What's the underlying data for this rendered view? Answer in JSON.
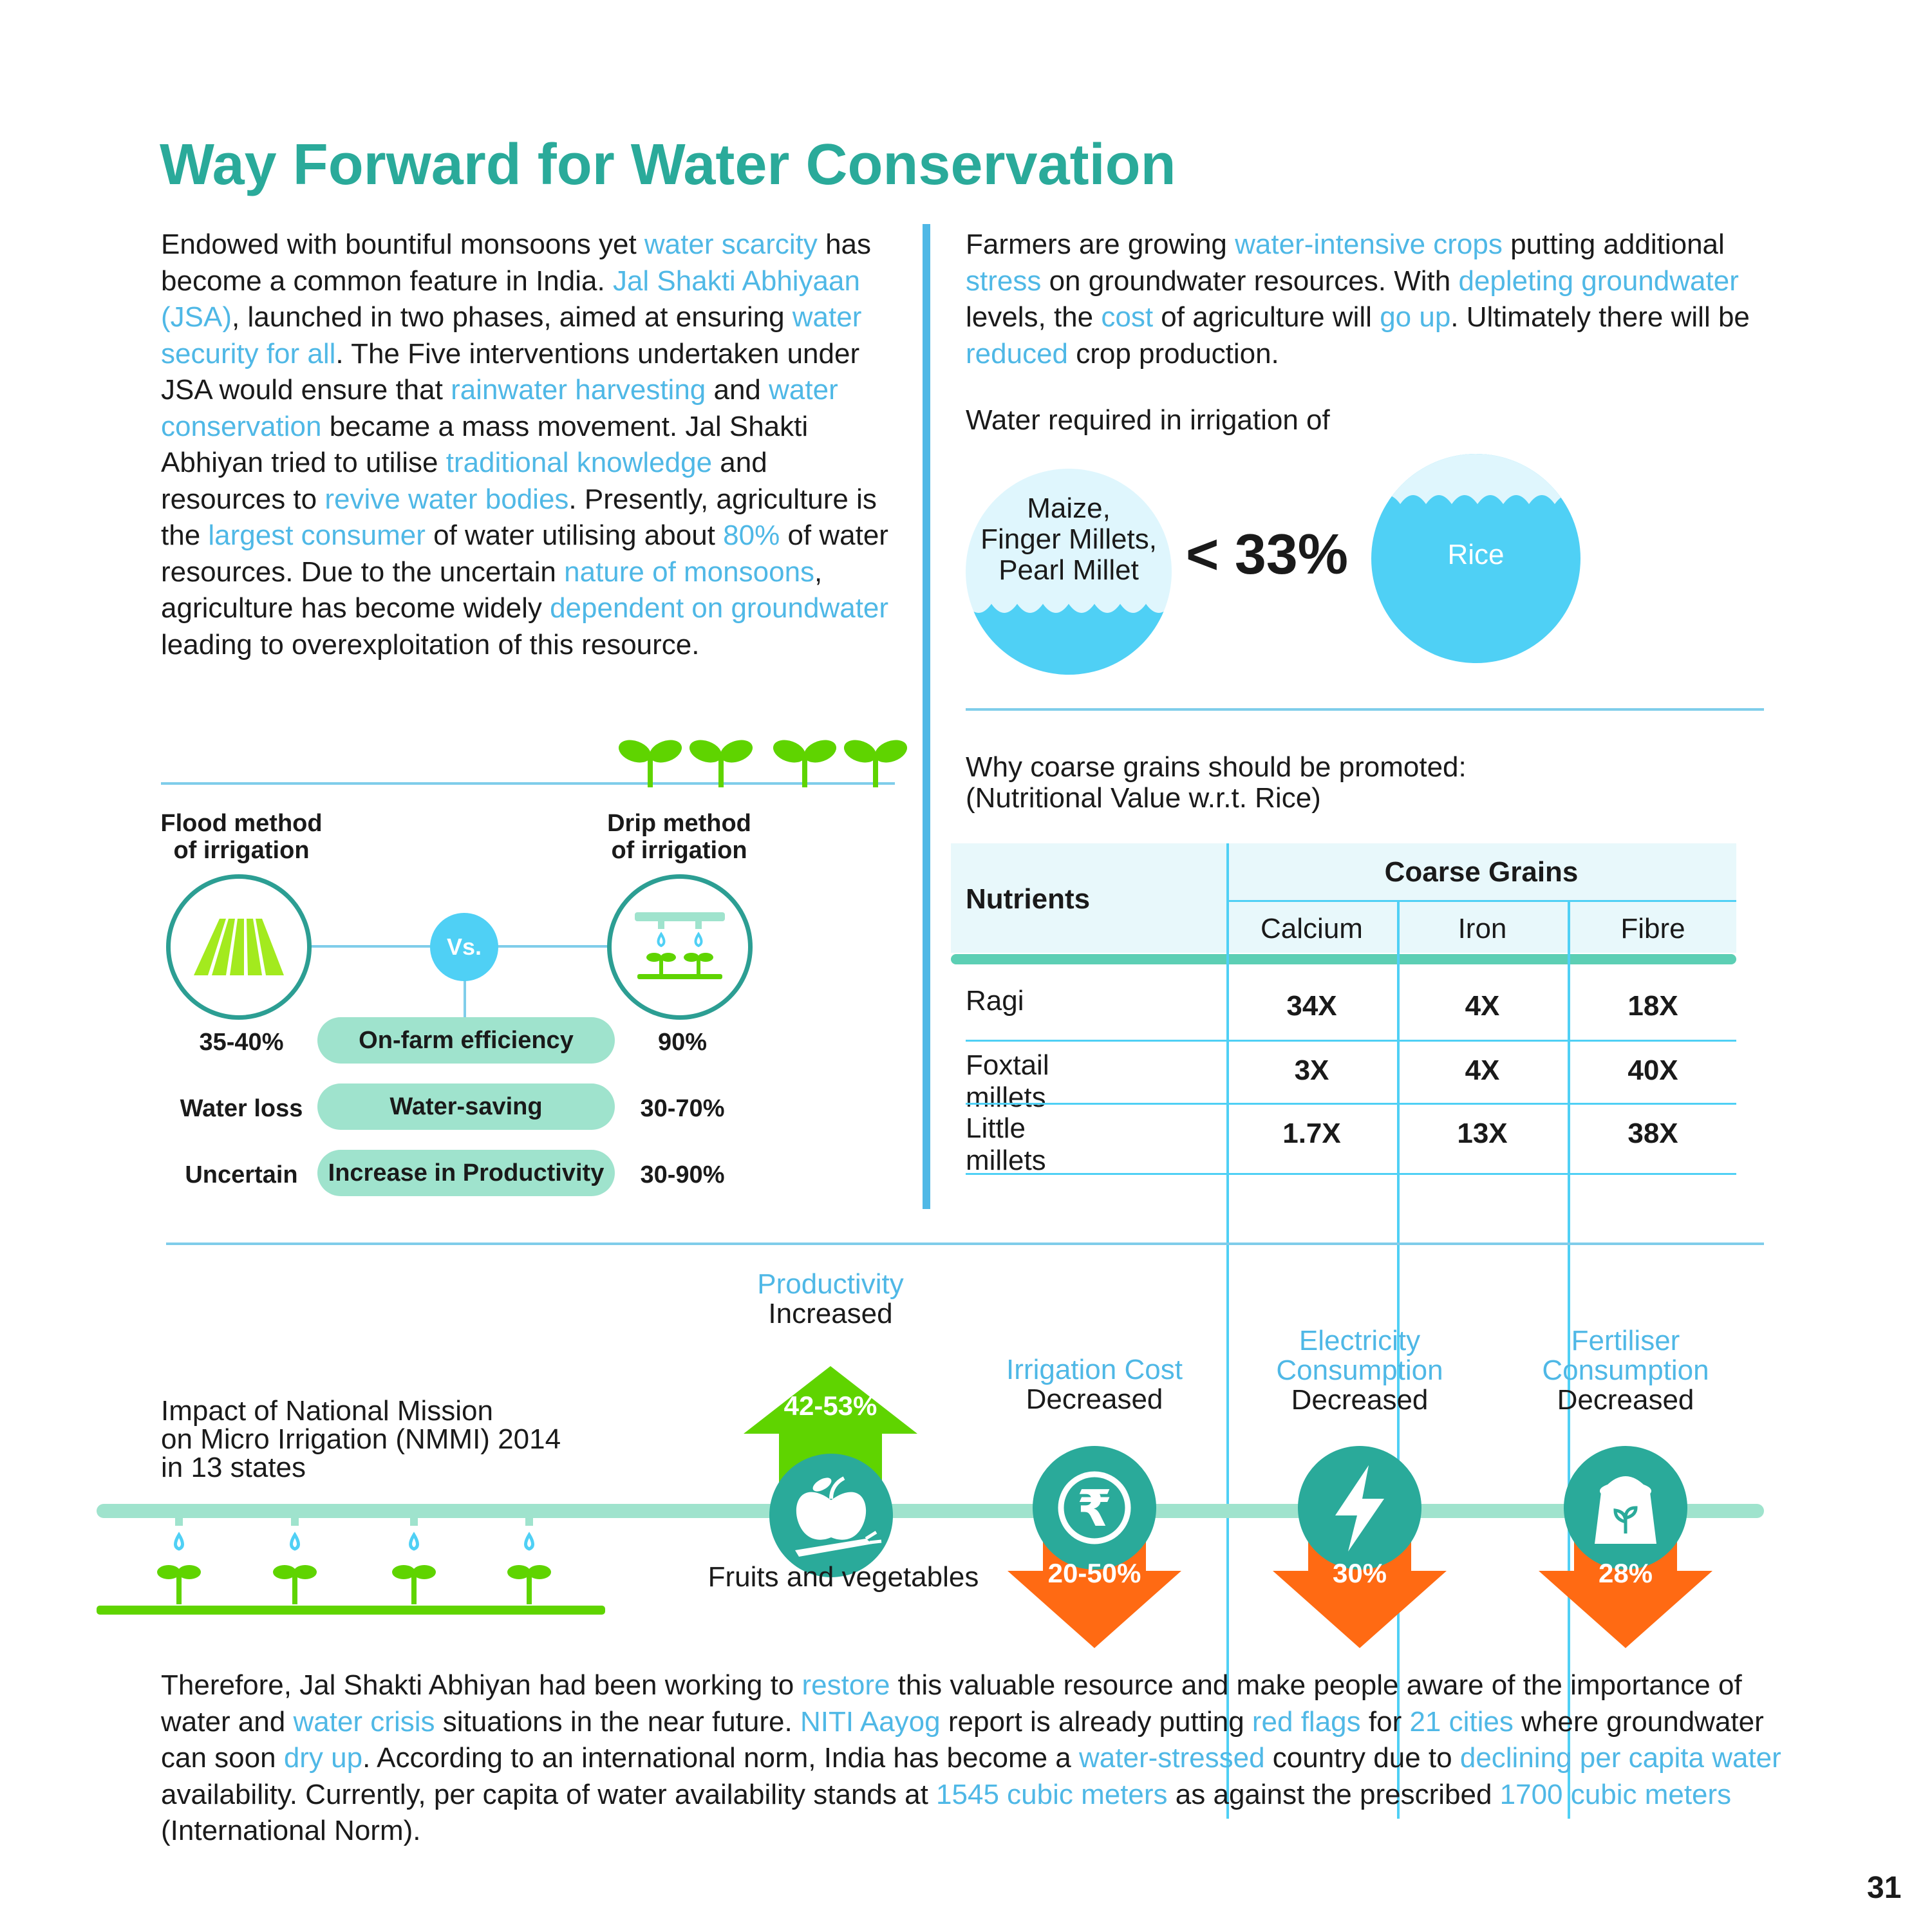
{
  "title": "Way Forward for Water Conservation",
  "left_paragraph": [
    {
      "t": "Endowed with bountiful monsoons yet ",
      "h": false
    },
    {
      "t": "water scarcity",
      "h": true
    },
    {
      "t": " has become a common feature in India. ",
      "h": false
    },
    {
      "t": "Jal Shakti Abhiyaan (JSA)",
      "h": true
    },
    {
      "t": ", launched in two phases, aimed at ensuring ",
      "h": false
    },
    {
      "t": "water security for all",
      "h": true
    },
    {
      "t": ". The Five interventions undertaken under JSA would ensure that ",
      "h": false
    },
    {
      "t": "rainwater harvesting",
      "h": true
    },
    {
      "t": " and ",
      "h": false
    },
    {
      "t": "water conservation",
      "h": true
    },
    {
      "t": " became a mass movement. Jal Shakti Abhiyan tried to utilise ",
      "h": false
    },
    {
      "t": "traditional knowledge",
      "h": true
    },
    {
      "t": " and resources to ",
      "h": false
    },
    {
      "t": "revive water bodies",
      "h": true
    },
    {
      "t": ". Presently, agriculture is the ",
      "h": false
    },
    {
      "t": "largest consumer",
      "h": true
    },
    {
      "t": " of water utilising about ",
      "h": false
    },
    {
      "t": "80%",
      "h": true
    },
    {
      "t": " of water resources. Due to the uncertain ",
      "h": false
    },
    {
      "t": "nature of monsoons",
      "h": true
    },
    {
      "t": ", agriculture has become widely ",
      "h": false
    },
    {
      "t": "dependent on groundwater",
      "h": true
    },
    {
      "t": " leading to overexploitation of this resource.",
      "h": false
    }
  ],
  "right_paragraph": [
    {
      "t": "Farmers are growing ",
      "h": false
    },
    {
      "t": "water-intensive crops",
      "h": true
    },
    {
      "t": " putting additional ",
      "h": false
    },
    {
      "t": "stress",
      "h": true
    },
    {
      "t": " on groundwater resources. With ",
      "h": false
    },
    {
      "t": "depleting groundwater",
      "h": true
    },
    {
      "t": " levels, the ",
      "h": false
    },
    {
      "t": "cost",
      "h": true
    },
    {
      "t": " of agriculture will ",
      "h": false
    },
    {
      "t": "go up",
      "h": true
    },
    {
      "t": ". Ultimately there will be ",
      "h": false
    },
    {
      "t": "reduced",
      "h": true
    },
    {
      "t": " crop production.",
      "h": false
    }
  ],
  "water_required": {
    "heading": "Water required in irrigation of",
    "left_bubble": [
      "Maize,",
      "Finger Millets,",
      "Pearl Millet"
    ],
    "comparison": "< 33%",
    "right_bubble": "Rice"
  },
  "irrigation": {
    "flood_label": [
      "Flood method",
      "of irrigation"
    ],
    "drip_label": [
      "Drip method",
      "of irrigation"
    ],
    "vs": "Vs.",
    "rows": [
      {
        "left": "35-40%",
        "metric": "On-farm efficiency",
        "right": "90%"
      },
      {
        "left": "Water loss",
        "metric": "Water-saving",
        "right": "30-70%"
      },
      {
        "left": "Uncertain",
        "metric": "Increase in Productivity",
        "right": "30-90%"
      }
    ]
  },
  "nutrition": {
    "heading": [
      "Why coarse grains should be promoted:",
      "(Nutritional Value w.r.t. Rice)"
    ],
    "col_nutrients": "Nutrients",
    "col_group": "Coarse Grains",
    "columns": [
      "Calcium",
      "Iron",
      "Fibre"
    ],
    "rows": [
      {
        "name": "Ragi",
        "values": [
          "34X",
          "4X",
          "18X"
        ]
      },
      {
        "name": "Foxtail millets",
        "values": [
          "3X",
          "4X",
          "40X"
        ]
      },
      {
        "name": "Little millets",
        "values": [
          "1.7X",
          "13X",
          "38X"
        ]
      }
    ]
  },
  "impact": {
    "title": [
      "Impact of National Mission",
      "on Micro Irrigation (NMMI) 2014",
      "in 13 states"
    ],
    "productivity": {
      "label": "Productivity",
      "status": "Increased",
      "value": "42-53%",
      "caption": "Fruits and vegetables",
      "icon": "fruits-vegetables-icon"
    },
    "items": [
      {
        "label": [
          "Irrigation Cost"
        ],
        "status": "Decreased",
        "value": "20-50%",
        "icon": "rupee-icon"
      },
      {
        "label": [
          "Electricity",
          "Consumption"
        ],
        "status": "Decreased",
        "value": "30%",
        "icon": "lightning-icon"
      },
      {
        "label": [
          "Fertiliser",
          "Consumption"
        ],
        "status": "Decreased",
        "value": "28%",
        "icon": "fertiliser-bag-icon"
      }
    ]
  },
  "bottom_paragraph": [
    {
      "t": "Therefore, Jal Shakti Abhiyan had been working to ",
      "h": false
    },
    {
      "t": "restore",
      "h": true
    },
    {
      "t": " this valuable resource and make people aware of the importance of water and ",
      "h": false
    },
    {
      "t": "water crisis",
      "h": true
    },
    {
      "t": " situations in the near future. ",
      "h": false
    },
    {
      "t": "NITI Aayog",
      "h": true
    },
    {
      "t": " report is already putting ",
      "h": false
    },
    {
      "t": "red flags",
      "h": true
    },
    {
      "t": " for ",
      "h": false
    },
    {
      "t": "21 cities",
      "h": true
    },
    {
      "t": " where groundwater can soon ",
      "h": false
    },
    {
      "t": "dry up",
      "h": true
    },
    {
      "t": ". According to an international norm, India has become a ",
      "h": false
    },
    {
      "t": "water-stressed",
      "h": true
    },
    {
      "t": " country due to ",
      "h": false
    },
    {
      "t": "declining per capita water",
      "h": true
    },
    {
      "t": " availability. Currently, per capita of water availability stands at ",
      "h": false
    },
    {
      "t": "1545 cubic meters",
      "h": true
    },
    {
      "t": " as against the prescribed ",
      "h": false
    },
    {
      "t": "1700 cubic meters",
      "h": true
    },
    {
      "t": " (International Norm).",
      "h": false
    }
  ],
  "page_number": "31",
  "colors": {
    "teal": "#2aaa9a",
    "highlight": "#4fb8e6",
    "orange": "#ff6a13",
    "green": "#5fd400",
    "mint": "#9fe3cd",
    "water": "#4fd0f5"
  }
}
